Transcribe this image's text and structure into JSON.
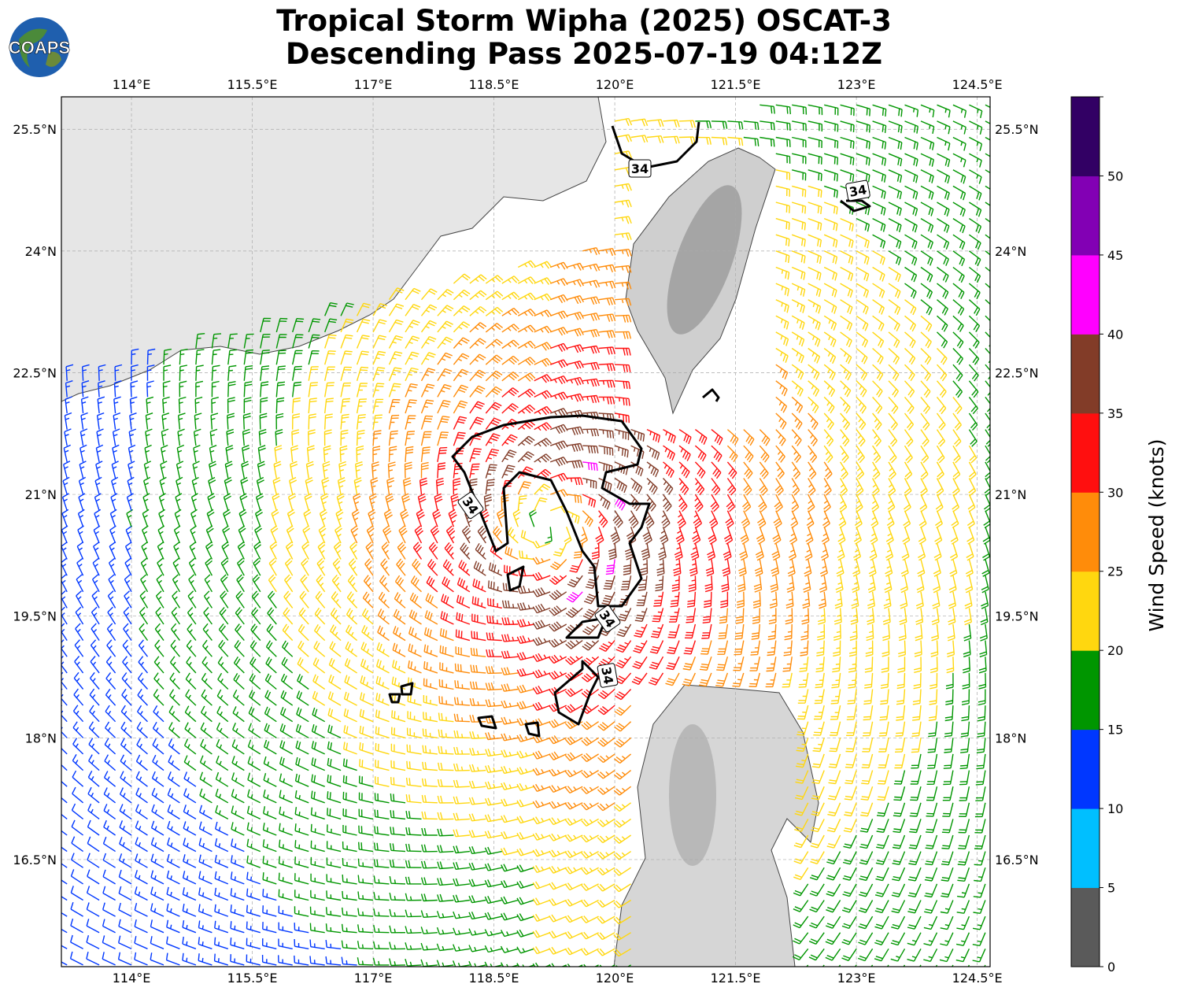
{
  "title": {
    "line1": "Tropical Storm Wipha (2025) OSCAT-3",
    "line2": "Descending Pass 2025-07-19 04:12Z"
  },
  "logo": {
    "text": "COAPS"
  },
  "map": {
    "lon_range": [
      113.13,
      124.66
    ],
    "lat_range": [
      15.18,
      25.9
    ],
    "lon_ticks": [
      "114°E",
      "115.5°E",
      "117°E",
      "118.5°E",
      "120°E",
      "121.5°E",
      "123°E",
      "124.5°E"
    ],
    "lon_tick_values": [
      114,
      115.5,
      117,
      118.5,
      120,
      121.5,
      123,
      124.5
    ],
    "lat_ticks": [
      "16.5°N",
      "18°N",
      "19.5°N",
      "21°N",
      "22.5°N",
      "24°N",
      "25.5°N"
    ],
    "lat_tick_values": [
      16.5,
      18,
      19.5,
      21,
      22.5,
      24,
      25.5
    ],
    "grid": true,
    "storm_center": {
      "lon": 119.2,
      "lat": 20.6
    },
    "contour_label": "34"
  },
  "colorbar": {
    "label": "Wind Speed (knots)",
    "ticks": [
      "0",
      "5",
      "10",
      "15",
      "20",
      "25",
      "30",
      "35",
      "40",
      "45",
      "50"
    ],
    "bounds": [
      0,
      5,
      10,
      15,
      20,
      25,
      30,
      35,
      40,
      45,
      50,
      55
    ],
    "colors": [
      "#5a5a5a",
      "#00bfff",
      "#0037ff",
      "#009600",
      "#ffd70f",
      "#ff8c0a",
      "#ff0f0f",
      "#823c28",
      "#ff00ff",
      "#8200b4",
      "#320064"
    ]
  }
}
